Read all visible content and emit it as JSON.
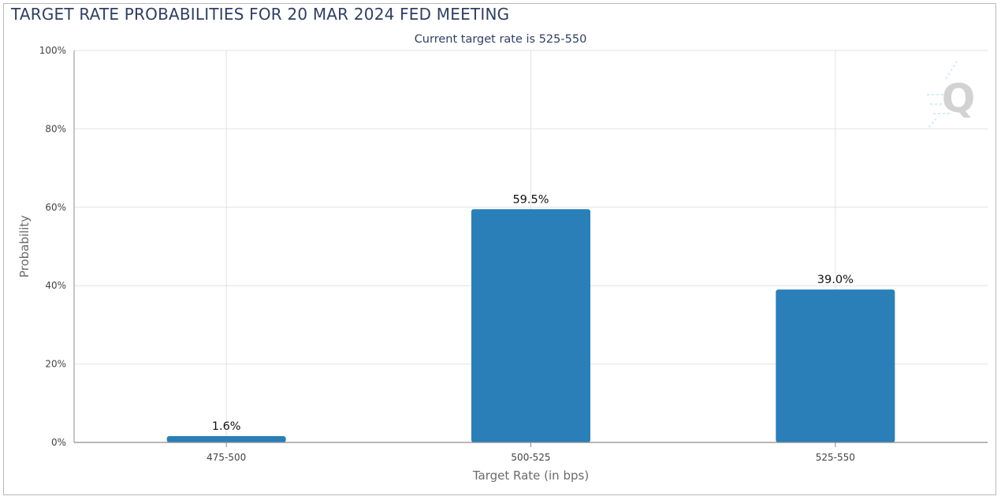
{
  "title": "TARGET RATE PROBABILITIES FOR 20 MAR 2024 FED MEETING",
  "subtitle": "Current target rate is 525-550",
  "colors": {
    "bar": "#2a7fb8",
    "grid": "#e2e2e2",
    "axis": "#8c8c8c",
    "title": "#2e3f63"
  },
  "chart_data": {
    "type": "bar",
    "title": "TARGET RATE PROBABILITIES FOR 20 MAR 2024 FED MEETING",
    "subtitle": "Current target rate is 525-550",
    "categories": [
      "475-500",
      "500-525",
      "525-550"
    ],
    "values": [
      1.6,
      59.5,
      39.0
    ],
    "data_labels": [
      "1.6%",
      "59.5%",
      "39.0%"
    ],
    "xlabel": "Target Rate (in bps)",
    "ylabel": "Probability",
    "ylim": [
      0,
      100
    ],
    "yticks": [
      0,
      20,
      40,
      60,
      80,
      100
    ],
    "ytick_labels": [
      "0%",
      "20%",
      "40%",
      "60%",
      "80%",
      "100%"
    ],
    "grid": true,
    "legend": "none"
  },
  "watermark": {
    "icon": "q-logo-icon",
    "text": "Q"
  }
}
